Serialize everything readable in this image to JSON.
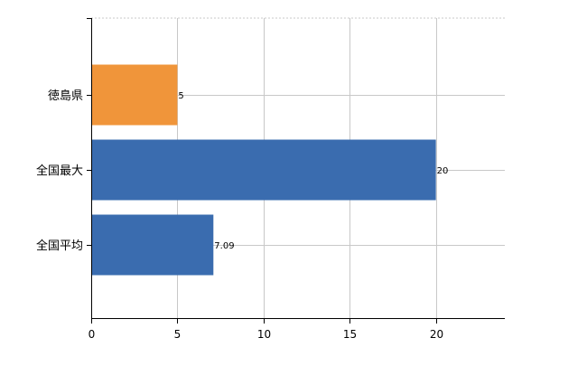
{
  "chart_data": {
    "type": "bar",
    "orientation": "horizontal",
    "categories": [
      "徳島県",
      "全国最大",
      "全国平均"
    ],
    "values": [
      5,
      20,
      7.09
    ],
    "data_labels": [
      "5",
      "20",
      "7.09"
    ],
    "bar_colors": [
      "#F0953A",
      "#3A6CAF",
      "#3A6CAF"
    ],
    "xlim": [
      0,
      24
    ],
    "xticks": [
      0,
      5,
      10,
      15,
      20
    ],
    "grid": true,
    "gridline_style": "dotted",
    "legend": "none"
  }
}
